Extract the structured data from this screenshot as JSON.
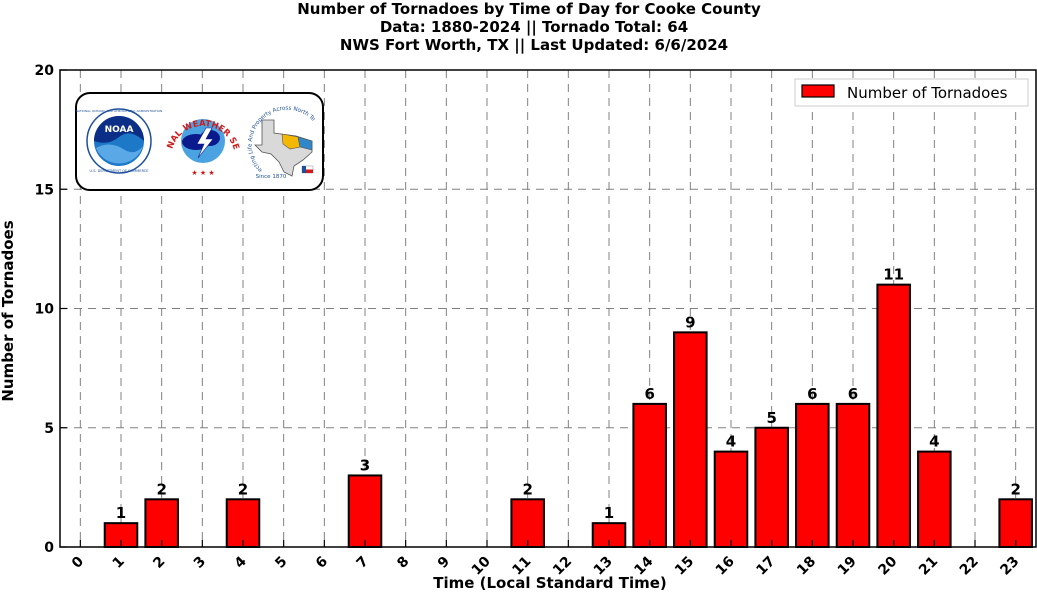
{
  "chart_data": {
    "type": "bar",
    "title_lines": [
      "Number of Tornadoes by Time of Day for Cooke County",
      "Data: 1880-2024 || Tornado Total: 64",
      "NWS Fort Worth, TX || Last Updated: 6/6/2024"
    ],
    "xlabel": "Time (Local Standard Time)",
    "ylabel": "Number of Tornadoes",
    "categories": [
      "0",
      "1",
      "2",
      "3",
      "4",
      "5",
      "6",
      "7",
      "8",
      "9",
      "10",
      "11",
      "12",
      "13",
      "14",
      "15",
      "16",
      "17",
      "18",
      "19",
      "20",
      "21",
      "22",
      "23"
    ],
    "series": [
      {
        "name": "Number of Tornadoes",
        "values": [
          0,
          1,
          2,
          0,
          2,
          0,
          0,
          3,
          0,
          0,
          0,
          2,
          0,
          1,
          6,
          9,
          4,
          5,
          6,
          6,
          11,
          4,
          0,
          2
        ]
      }
    ],
    "data_labels": [
      "",
      "1",
      "2",
      "",
      "2",
      "",
      "",
      "3",
      "",
      "",
      "",
      "2",
      "",
      "1",
      "6",
      "9",
      "4",
      "5",
      "6",
      "6",
      "11",
      "4",
      "",
      "2"
    ],
    "ylim": [
      0,
      20
    ],
    "yticks": [
      0,
      5,
      10,
      15,
      20
    ],
    "grid": true,
    "legend_position": "top-right",
    "bar_color": "#ff0000",
    "edge_color": "#000000"
  },
  "logos": {
    "noaa_text": "NOAA",
    "nws_text": "NATIONAL WEATHER SERVICE",
    "texas_text": "Protecting Life And Property Across North Texas",
    "since_text": "Since 1870",
    "noaa_ring_text": "NATIONAL OCEANIC AND ATMOSPHERIC ADMINISTRATION",
    "noaa_dept_text": "U.S. DEPARTMENT OF COMMERCE"
  }
}
